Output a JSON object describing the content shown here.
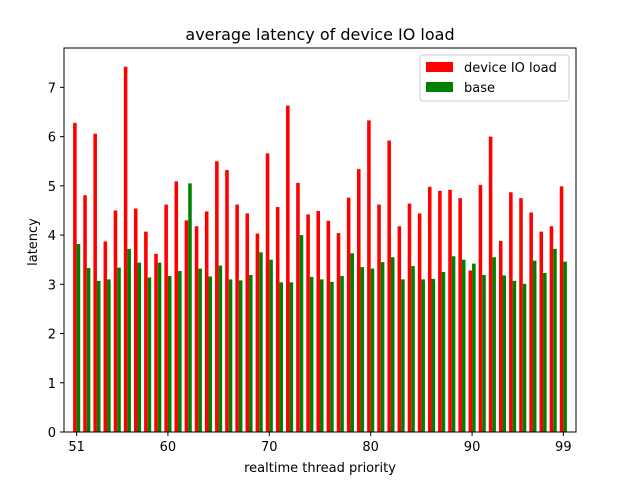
{
  "chart_data": {
    "type": "bar",
    "title": "average latency of device IO load",
    "xlabel": "realtime thread priority",
    "ylabel": "latency",
    "x": [
      51,
      52,
      53,
      54,
      55,
      56,
      57,
      58,
      59,
      60,
      61,
      62,
      63,
      64,
      65,
      66,
      67,
      68,
      69,
      70,
      71,
      72,
      73,
      74,
      75,
      76,
      77,
      78,
      79,
      80,
      81,
      82,
      83,
      84,
      85,
      86,
      87,
      88,
      89,
      90,
      91,
      92,
      93,
      94,
      95,
      96,
      97,
      98,
      99
    ],
    "xlim": [
      49.75,
      100.25
    ],
    "ylim": [
      0,
      7.8
    ],
    "xticks": [
      51,
      60,
      70,
      80,
      90,
      99
    ],
    "yticks": [
      0,
      1,
      2,
      3,
      4,
      5,
      6,
      7
    ],
    "grid": false,
    "legend_position": "top-right",
    "series": [
      {
        "name": "device IO load",
        "color": "#ff0000",
        "values": [
          6.28,
          4.81,
          6.06,
          3.87,
          4.5,
          7.42,
          4.54,
          4.07,
          3.62,
          4.62,
          5.09,
          4.3,
          4.18,
          4.48,
          5.5,
          5.32,
          4.62,
          4.44,
          4.03,
          5.66,
          4.57,
          6.63,
          5.06,
          4.42,
          4.49,
          4.29,
          4.04,
          4.76,
          5.34,
          6.33,
          4.62,
          5.92,
          4.18,
          4.64,
          4.44,
          4.98,
          4.9,
          4.92,
          4.75,
          3.28,
          5.02,
          6.0,
          3.88,
          4.87,
          4.75,
          4.46,
          4.07,
          4.18,
          4.99
        ]
      },
      {
        "name": "base",
        "color": "#008000",
        "values": [
          3.82,
          3.33,
          3.07,
          3.1,
          3.34,
          3.72,
          3.44,
          3.14,
          3.44,
          3.17,
          3.27,
          5.05,
          3.32,
          3.16,
          3.38,
          3.1,
          3.08,
          3.19,
          3.65,
          3.5,
          3.04,
          3.04,
          4.0,
          3.15,
          3.1,
          3.05,
          3.17,
          3.63,
          3.35,
          3.32,
          3.45,
          3.55,
          3.1,
          3.37,
          3.1,
          3.11,
          3.25,
          3.57,
          3.5,
          3.42,
          3.19,
          3.55,
          3.18,
          3.07,
          3.01,
          3.48,
          3.23,
          3.72,
          3.46
        ]
      }
    ]
  }
}
